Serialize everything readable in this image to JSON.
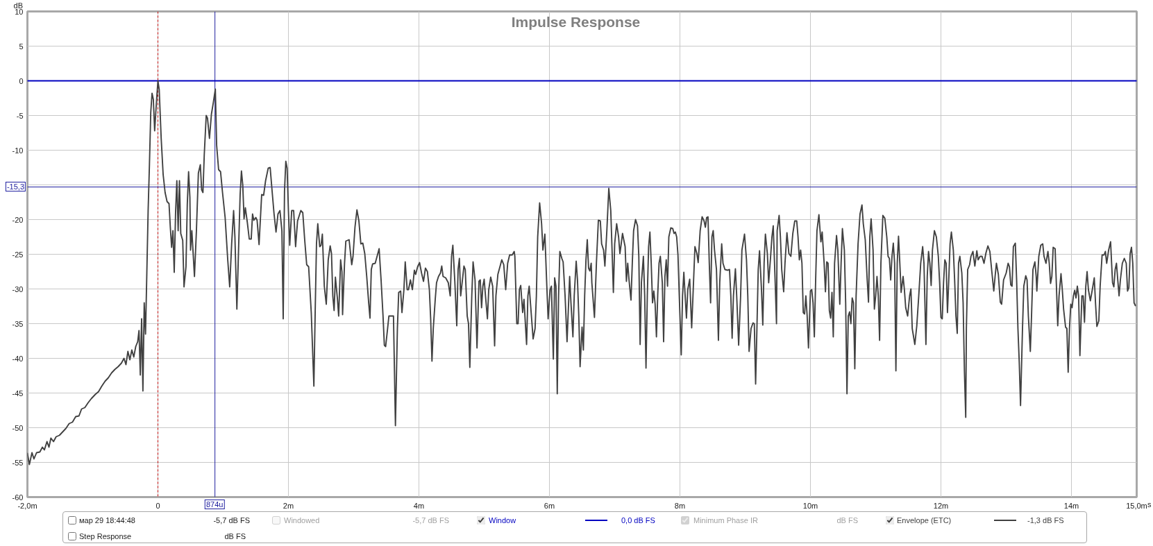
{
  "chart_data": {
    "type": "line",
    "title": "Impulse Response",
    "xlabel": "s",
    "ylabel": "dB",
    "xlim": [
      -2,
      15
    ],
    "ylim": [
      -60,
      10
    ],
    "xticks": [
      {
        "value": -2,
        "label": "-2,0m"
      },
      0,
      {
        "value": 2,
        "label": "2m"
      },
      {
        "value": 4,
        "label": "4m"
      },
      {
        "value": 6,
        "label": "6m"
      },
      {
        "value": 8,
        "label": "8m"
      },
      {
        "value": 10,
        "label": "10m"
      },
      {
        "value": 12,
        "label": "12m"
      },
      {
        "value": 14,
        "label": "14m"
      },
      {
        "value": 15,
        "label": "15,0m"
      }
    ],
    "yticks": [
      -60,
      -55,
      -50,
      -45,
      -40,
      -35,
      -30,
      -25,
      -20,
      {
        "value": -15,
        "label": null
      },
      -10,
      -5,
      0,
      5,
      10
    ],
    "grid": true,
    "legend": "bottom",
    "series": [
      {
        "name": "Window",
        "color": "#0000c0",
        "x": [
          -2,
          15
        ],
        "values": [
          0,
          0
        ]
      },
      {
        "name": "Envelope (ETC)",
        "color": "#404040",
        "x": [
          -2,
          -1.97,
          -1.93,
          -1.9,
          -1.86,
          -1.81,
          -1.77,
          -1.74,
          -1.7,
          -1.67,
          -1.64,
          -1.6,
          -1.56,
          -1.51,
          -1.46,
          -1.41,
          -1.36,
          -1.31,
          -1.26,
          -1.21,
          -1.17,
          -1.12,
          -1.07,
          -1.02,
          -0.96,
          -0.91,
          -0.86,
          -0.81,
          -0.76,
          -0.71,
          -0.66,
          -0.61,
          -0.56,
          -0.52,
          -0.49,
          -0.46,
          -0.43,
          -0.4,
          -0.37,
          -0.34,
          -0.31,
          -0.29,
          -0.27,
          -0.25,
          -0.23,
          -0.21,
          -0.19,
          -0.17,
          -0.15,
          -0.13,
          -0.11,
          -0.09,
          -0.07,
          -0.05,
          -0.02,
          0,
          0.02,
          0.05,
          0.08,
          0.11,
          0.14,
          0.17,
          0.19,
          0.21,
          0.23,
          0.25,
          0.27,
          0.29,
          0.31,
          0.33,
          0.35,
          0.38,
          0.4,
          0.43,
          0.45,
          0.47,
          0.49,
          0.5,
          0.52,
          0.56,
          0.59,
          0.62,
          0.65,
          0.67,
          0.69,
          0.71,
          0.74,
          0.76,
          0.79,
          0.82,
          0.85,
          0.88,
          0.9,
          0.93,
          0.96,
          0.99,
          1.03,
          1.07,
          1.1,
          1.13,
          1.16,
          1.18,
          1.21,
          1.23,
          1.26,
          1.28,
          1.3,
          1.32,
          1.34,
          1.37,
          1.4,
          1.43,
          1.45,
          1.47,
          1.5,
          1.52,
          1.55,
          1.59,
          1.62,
          1.65,
          1.69,
          1.72,
          1.75,
          1.78,
          1.81,
          1.84,
          1.87,
          1.9,
          1.92,
          1.94,
          1.96,
          1.98,
          2,
          2.02,
          2.05,
          2.08,
          2.11,
          2.14,
          2.19,
          2.22,
          2.25,
          2.28,
          2.31,
          2.35,
          2.39,
          2.41,
          2.43,
          2.45,
          2.48,
          2.5,
          2.52,
          2.55,
          2.58,
          2.61,
          2.64,
          2.66,
          2.68,
          2.7,
          2.72,
          2.75,
          2.77,
          2.8,
          2.82,
          2.83,
          2.86,
          2.88,
          2.93,
          2.97,
          2.99,
          3.02,
          3.05,
          3.08,
          3.11,
          3.14,
          3.17,
          3.2,
          3.23,
          3.25,
          3.27,
          3.29,
          3.33,
          3.37,
          3.39,
          3.42,
          3.45,
          3.47,
          3.49,
          3.52,
          3.54,
          3.61,
          3.64,
          3.67,
          3.69,
          3.72,
          3.74,
          3.77,
          3.79,
          3.82,
          3.84,
          3.87,
          3.9,
          3.93,
          3.95,
          3.98,
          4.01,
          4.04,
          4.07,
          4.1,
          4.13,
          4.16,
          4.18,
          4.2,
          4.22,
          4.25,
          4.27,
          4.3,
          4.33,
          4.35,
          4.37,
          4.41,
          4.45,
          4.48,
          4.5,
          4.52,
          4.55,
          4.58,
          4.6,
          4.62,
          4.64,
          4.69,
          4.71,
          4.74,
          4.76,
          4.78,
          4.81,
          4.83,
          4.86,
          4.89,
          4.92,
          4.94,
          4.96,
          4.98,
          5,
          5.02,
          5.05,
          5.07,
          5.1,
          5.13,
          5.16,
          5.18,
          5.21,
          5.23,
          5.27,
          5.3,
          5.33,
          5.36,
          5.39,
          5.43,
          5.46,
          5.47,
          5.5,
          5.52,
          5.54,
          5.56,
          5.59,
          5.61,
          5.63,
          5.65,
          5.67,
          5.69,
          5.72,
          5.75,
          5.78,
          5.8,
          5.82,
          5.85,
          5.88,
          5.9,
          5.93,
          5.96,
          5.98,
          6.01,
          6.03,
          6.06,
          6.08,
          6.1,
          6.12,
          6.14,
          6.16,
          6.19,
          6.21,
          6.24,
          6.27,
          6.31,
          6.33,
          6.36,
          6.38,
          6.41,
          6.43,
          6.45,
          6.47,
          6.5,
          6.52,
          6.54,
          6.56,
          6.58,
          6.6,
          6.62,
          6.64,
          6.65,
          6.69,
          6.72,
          6.75,
          6.78,
          6.8,
          6.83,
          6.85,
          6.88,
          6.91,
          6.94,
          6.96,
          6.98,
          7,
          7.03,
          7.06,
          7.08,
          7.1,
          7.12,
          7.16,
          7.18,
          7.2,
          7.22,
          7.25,
          7.27,
          7.29,
          7.32,
          7.35,
          7.37,
          7.39,
          7.41,
          7.44,
          7.46,
          7.48,
          7.5,
          7.52,
          7.54,
          7.56,
          7.58,
          7.6,
          7.62,
          7.64,
          7.66,
          7.68,
          7.7,
          7.73,
          7.75,
          7.77,
          7.79,
          7.81,
          7.83,
          7.86,
          7.89,
          7.91,
          7.93,
          7.95,
          7.97,
          7.99,
          8.02,
          8.04,
          8.06,
          8.08,
          8.1,
          8.12,
          8.15,
          8.16,
          8.18,
          8.2,
          8.23,
          8.26,
          8.28,
          8.31,
          8.34,
          8.37,
          8.39,
          8.41,
          8.43,
          8.45,
          8.47,
          8.49,
          8.51,
          8.53,
          8.56,
          8.59,
          8.61,
          8.64,
          8.66,
          8.69,
          8.73,
          8.76,
          8.78,
          8.8,
          8.82,
          8.85,
          8.87,
          8.9,
          8.93,
          8.95,
          8.99,
          9.02,
          9.04,
          9.06,
          9.09,
          9.12,
          9.14,
          9.16,
          9.18,
          9.2,
          9.22,
          9.25,
          9.27,
          9.29,
          9.31,
          9.34,
          9.36,
          9.39,
          9.41,
          9.43,
          9.46,
          9.48,
          9.49,
          9.52,
          9.54,
          9.56,
          9.59,
          9.61,
          9.64,
          9.67,
          9.7,
          9.73,
          9.76,
          9.79,
          9.81,
          9.83,
          9.85,
          9.87,
          9.89,
          9.91,
          9.93,
          9.95,
          9.97,
          10,
          10.02,
          10.04,
          10.06,
          10.08,
          10.1,
          10.13,
          10.16,
          10.18,
          10.21,
          10.23,
          10.25,
          10.27,
          10.29,
          10.31,
          10.33,
          10.35,
          10.37,
          10.4,
          10.42,
          10.45,
          10.47,
          10.49,
          10.52,
          10.54,
          10.56,
          10.58,
          10.6,
          10.62,
          10.64,
          10.66,
          10.68,
          10.7,
          10.73,
          10.76,
          10.79,
          10.81,
          10.84,
          10.87,
          10.89,
          10.91,
          10.93,
          10.96,
          10.98,
          11,
          11.02,
          11.04,
          11.06,
          11.08,
          11.11,
          11.14,
          11.17,
          11.19,
          11.21,
          11.23,
          11.25,
          11.27,
          11.29,
          11.31,
          11.33,
          11.35,
          11.37,
          11.39,
          11.42,
          11.44,
          11.46,
          11.49,
          11.52,
          11.54,
          11.56,
          11.6,
          11.63,
          11.66,
          11.69,
          11.72,
          11.74,
          11.77,
          11.79,
          11.81,
          11.83,
          11.85,
          11.87,
          11.9,
          11.93,
          11.96,
          11.98,
          12,
          12.02,
          12.04,
          12.06,
          12.08,
          12.1,
          12.12,
          12.14,
          12.16,
          12.19,
          12.21,
          12.23,
          12.25,
          12.27,
          12.29,
          12.32,
          12.34,
          12.36,
          12.38,
          12.39,
          12.41,
          12.44,
          12.46,
          12.49,
          12.52,
          12.55,
          12.57,
          12.6,
          12.63,
          12.66,
          12.69,
          12.72,
          12.75,
          12.78,
          12.81,
          12.83,
          12.85,
          12.88,
          12.91,
          12.93,
          12.96,
          13,
          13.03,
          13.05,
          13.07,
          13.09,
          13.11,
          13.14,
          13.16,
          13.18,
          13.2,
          13.22,
          13.25,
          13.27,
          13.3,
          13.32,
          13.34,
          13.37,
          13.39,
          13.41,
          13.44,
          13.46,
          13.47,
          13.5,
          13.53,
          13.56,
          13.58,
          13.61,
          13.64,
          13.66,
          13.68,
          13.7,
          13.72,
          13.75,
          13.77,
          13.79,
          13.81,
          13.84,
          13.86,
          13.88,
          13.91,
          13.93,
          13.95,
          13.97,
          13.99,
          14.01,
          14.03,
          14.05,
          14.07,
          14.09,
          14.11,
          14.13,
          14.16,
          14.18,
          14.2,
          14.22,
          14.24,
          14.26,
          14.29,
          14.32,
          14.35,
          14.37,
          14.39,
          14.42,
          14.44,
          14.47,
          14.5,
          14.52,
          14.54,
          14.57,
          14.6,
          14.63,
          14.65,
          14.67,
          14.69,
          14.71,
          14.73,
          14.75,
          14.78,
          14.81,
          14.84,
          14.86,
          14.88,
          14.9,
          14.92,
          14.94,
          14.96,
          14.98
        ],
        "values": [
          -53.7,
          -55.3,
          -53.6,
          -54.5,
          -53.6,
          -53.5,
          -52.8,
          -53.2,
          -52,
          -52.8,
          -51.5,
          -52,
          -51.3,
          -51.1,
          -50.6,
          -50.1,
          -49.4,
          -49.2,
          -48.4,
          -48.3,
          -47.3,
          -47.1,
          -46.4,
          -45.8,
          -45.2,
          -44.8,
          -44,
          -43.3,
          -42.8,
          -42.1,
          -41.6,
          -41.2,
          -40.7,
          -40,
          -40.9,
          -39,
          -40.2,
          -38.8,
          -39.8,
          -38.3,
          -37.6,
          -36,
          -42.4,
          -34.3,
          -44.7,
          -32,
          -36.5,
          -27.7,
          -18.7,
          -12.1,
          -4.6,
          -1.8,
          -2.7,
          -7.2,
          -2.7,
          0,
          -1.3,
          -8.3,
          -13.5,
          -16.1,
          -17.4,
          -17.7,
          -21.1,
          -24,
          -21.6,
          -27.6,
          -19.2,
          -14.4,
          -21.6,
          -14.4,
          -22,
          -23,
          -29.7,
          -26.8,
          -17.8,
          -13.1,
          -16.8,
          -24.4,
          -21.6,
          -28.2,
          -21.6,
          -13.3,
          -12.1,
          -15.7,
          -16.1,
          -10.7,
          -5,
          -5.4,
          -8.3,
          -4.8,
          -3.1,
          -1.2,
          -9.3,
          -12.8,
          -13.1,
          -16.1,
          -19.7,
          -25.8,
          -29.7,
          -23.5,
          -18.7,
          -22.5,
          -32.9,
          -26.3,
          -16.4,
          -13,
          -15,
          -19.9,
          -18.3,
          -20.4,
          -22.8,
          -22.8,
          -19.2,
          -20.1,
          -19.7,
          -20.1,
          -23.6,
          -16.4,
          -16.5,
          -14.4,
          -12.6,
          -12.5,
          -15.9,
          -19.2,
          -21.8,
          -19.2,
          -18.7,
          -21.6,
          -34.3,
          -15.9,
          -11.6,
          -12.6,
          -18.7,
          -23.7,
          -18.7,
          -18.7,
          -23.9,
          -20.2,
          -18.7,
          -19,
          -23,
          -26.5,
          -26.8,
          -33.4,
          -44,
          -33.4,
          -23.5,
          -20.6,
          -23.9,
          -23.7,
          -22.1,
          -29.6,
          -32.2,
          -25.8,
          -23.8,
          -24.9,
          -31,
          -33.1,
          -28.3,
          -31.3,
          -33.9,
          -25.8,
          -27.5,
          -33.7,
          -26.3,
          -23.1,
          -22.9,
          -26.5,
          -25.3,
          -21.1,
          -18.6,
          -20.2,
          -23.5,
          -23.4,
          -24.9,
          -28.2,
          -32,
          -34.2,
          -27.2,
          -26.4,
          -26.3,
          -24.9,
          -24.2,
          -28.7,
          -33.9,
          -38.1,
          -38.3,
          -35.7,
          -33.9,
          -33.9,
          -49.7,
          -35.7,
          -30.5,
          -30.3,
          -33.4,
          -30.1,
          -26.1,
          -30.1,
          -30.1,
          -28.7,
          -30.1,
          -27.3,
          -27.9,
          -26.8,
          -26.2,
          -27.7,
          -28.9,
          -27,
          -27.5,
          -30.1,
          -34.3,
          -40.4,
          -35.7,
          -31.5,
          -29.1,
          -28.2,
          -27.7,
          -26.7,
          -28.2,
          -28.4,
          -29.1,
          -31,
          -25.3,
          -23.7,
          -28.9,
          -35.3,
          -27.2,
          -25.6,
          -31,
          -26.7,
          -27.2,
          -33.9,
          -35,
          -41.3,
          -31,
          -26.1,
          -28.7,
          -38.5,
          -28.9,
          -28.7,
          -32.7,
          -29.6,
          -28.6,
          -31,
          -34.3,
          -30.1,
          -28.3,
          -29.6,
          -38.2,
          -31,
          -27.9,
          -27.2,
          -25.8,
          -26.5,
          -30.1,
          -26.3,
          -25.1,
          -25.1,
          -24.6,
          -25.3,
          -35,
          -35,
          -30.1,
          -29.5,
          -33.4,
          -31.5,
          -34.8,
          -38,
          -31,
          -29.6,
          -33.4,
          -37.2,
          -35.7,
          -31,
          -22.5,
          -17.6,
          -20.6,
          -24.4,
          -22.1,
          -29.6,
          -34.3,
          -30.1,
          -29.6,
          -40.1,
          -28.4,
          -29.6,
          -45.1,
          -31,
          -24.6,
          -25.6,
          -26.1,
          -31,
          -37.6,
          -28.2,
          -32,
          -36.9,
          -31,
          -26,
          -28.7,
          -33.9,
          -41.2,
          -35.5,
          -38.8,
          -31,
          -25.8,
          -22.9,
          -27,
          -27.4,
          -26.3,
          -29.1,
          -34.1,
          -26.3,
          -20.1,
          -20.2,
          -23.5,
          -24.4,
          -26.7,
          -21.6,
          -15.5,
          -18.7,
          -24.4,
          -30.5,
          -23.5,
          -20.6,
          -22.5,
          -24.9,
          -23.5,
          -22,
          -23.9,
          -28.9,
          -26.3,
          -28.7,
          -31.6,
          -26.3,
          -21.6,
          -20,
          -20.9,
          -25.3,
          -38,
          -29.1,
          -25.3,
          -31,
          -41.4,
          -31,
          -23.9,
          -21.8,
          -26.3,
          -32,
          -30.3,
          -32.2,
          -36.9,
          -30.8,
          -26.3,
          -25.3,
          -29.1,
          -37.6,
          -28.2,
          -25.8,
          -29.6,
          -22.5,
          -21.2,
          -21.3,
          -22,
          -21.8,
          -22.5,
          -25.1,
          -31,
          -39.5,
          -31,
          -27.6,
          -31,
          -34.2,
          -30.1,
          -28.6,
          -31,
          -35.6,
          -31,
          -23.9,
          -24.9,
          -26.2,
          -21.6,
          -19.6,
          -20.2,
          -21.1,
          -19.7,
          -19.6,
          -26.3,
          -32,
          -22.5,
          -21.6,
          -24.4,
          -27.2,
          -37.4,
          -29.1,
          -23.5,
          -26.3,
          -27.2,
          -27.3,
          -27.2,
          -31,
          -37.1,
          -31,
          -27.1,
          -31,
          -38.1,
          -31,
          -24.4,
          -22.1,
          -25.8,
          -31,
          -39,
          -35.7,
          -34.9,
          -35,
          -43.7,
          -35.7,
          -27.2,
          -24.5,
          -30.1,
          -35.2,
          -26.3,
          -22.1,
          -24.9,
          -29.1,
          -25.3,
          -22.5,
          -20.9,
          -29.1,
          -35,
          -21.6,
          -19.4,
          -22.5,
          -27.2,
          -30.4,
          -26.3,
          -21.9,
          -24.9,
          -25.3,
          -22,
          -20.2,
          -20.2,
          -22.5,
          -25.8,
          -24.4,
          -26.3,
          -33.4,
          -33.6,
          -31,
          -33.9,
          -38.5,
          -30.3,
          -30.1,
          -32,
          -36.9,
          -28.7,
          -21.6,
          -19.3,
          -23.2,
          -21.8,
          -26.3,
          -30.4,
          -26.1,
          -26.3,
          -33.1,
          -34.2,
          -30.5,
          -36.9,
          -26.3,
          -22.3,
          -24.4,
          -32.2,
          -26.3,
          -21.3,
          -24.4,
          -32,
          -45.1,
          -33.9,
          -33.3,
          -35,
          -31.3,
          -32,
          -41.5,
          -31,
          -23.5,
          -19.2,
          -17.9,
          -20.6,
          -22.9,
          -28.7,
          -31.9,
          -22.5,
          -19.9,
          -24.4,
          -32.9,
          -31,
          -28.2,
          -31,
          -37.4,
          -26.3,
          -19.4,
          -19.8,
          -22.5,
          -25.3,
          -25.6,
          -28.7,
          -25.3,
          -23.4,
          -26.3,
          -41.8,
          -26.3,
          -22.4,
          -26.3,
          -30.5,
          -28.2,
          -30.1,
          -32.7,
          -33.9,
          -31,
          -30,
          -35.7,
          -38,
          -35.3,
          -31,
          -26.3,
          -23.9,
          -26.3,
          -38,
          -28.2,
          -24.6,
          -26.3,
          -29.5,
          -24.4,
          -21.6,
          -22.5,
          -25.3,
          -29.1,
          -34.1,
          -34.3,
          -29.1,
          -25.8,
          -26.3,
          -33.4,
          -28.7,
          -23.5,
          -21.8,
          -24.4,
          -28.7,
          -33.9,
          -36.4,
          -26.3,
          -25.3,
          -27.7,
          -32,
          -41.9,
          -48.5,
          -35.7,
          -27.2,
          -26.5,
          -25.3,
          -24.6,
          -26.7,
          -24.5,
          -25.8,
          -25.3,
          -25.3,
          -26.3,
          -24.8,
          -23.8,
          -24.6,
          -27.5,
          -30.3,
          -28.2,
          -26.3,
          -27.9,
          -31.9,
          -32.2,
          -28.7,
          -27.7,
          -26.3,
          -26.8,
          -29.4,
          -29.6,
          -23.9,
          -23.4,
          -28.7,
          -35.7,
          -40.5,
          -46.8,
          -35.7,
          -29.6,
          -28.1,
          -28.7,
          -33.9,
          -39,
          -33.4,
          -27.2,
          -26.1,
          -28.2,
          -30.3,
          -25.3,
          -23.7,
          -23.5,
          -25.3,
          -26.3,
          -24.6,
          -26.3,
          -29.2,
          -28.2,
          -24,
          -24.2,
          -29.6,
          -35.3,
          -31,
          -27.8,
          -30.1,
          -32.9,
          -35.5,
          -35.7,
          -42,
          -35.7,
          -32.2,
          -32.7,
          -31,
          -30.2,
          -31.3,
          -29.6,
          -31,
          -39.6,
          -31,
          -31,
          -34.8,
          -29.6,
          -27.5,
          -30.1,
          -31.7,
          -30.1,
          -28.4,
          -32.2,
          -35.4,
          -34.6,
          -29.6,
          -25.1,
          -25.1,
          -24.6,
          -26.3,
          -24.4,
          -23.2,
          -29.1,
          -29.7,
          -27.2,
          -26.3,
          -28.7,
          -31,
          -28.7,
          -26.3,
          -25.6,
          -26.3,
          -30.3,
          -29.8,
          -24.9,
          -24,
          -26.3,
          -32,
          -32.4
        ]
      }
    ],
    "ref_lines": [
      {
        "axis": "x",
        "value": 0,
        "color": "#c00000",
        "line_style": "dashed"
      },
      {
        "axis": "x",
        "value": 0.874,
        "label": "874u",
        "color": "#2020a0"
      },
      {
        "axis": "y",
        "value": -15.3,
        "label": "-15,3",
        "color": "#2020a0"
      }
    ],
    "annotations": [
      "мар 29 18:44:48",
      "-5,7 dB FS",
      "Windowed",
      "-5,7 dB FS",
      "0,0 dB FS",
      "Minimum Phase IR",
      "dB FS",
      "-1,3 dB FS",
      "Step Response",
      "dB FS"
    ]
  }
}
